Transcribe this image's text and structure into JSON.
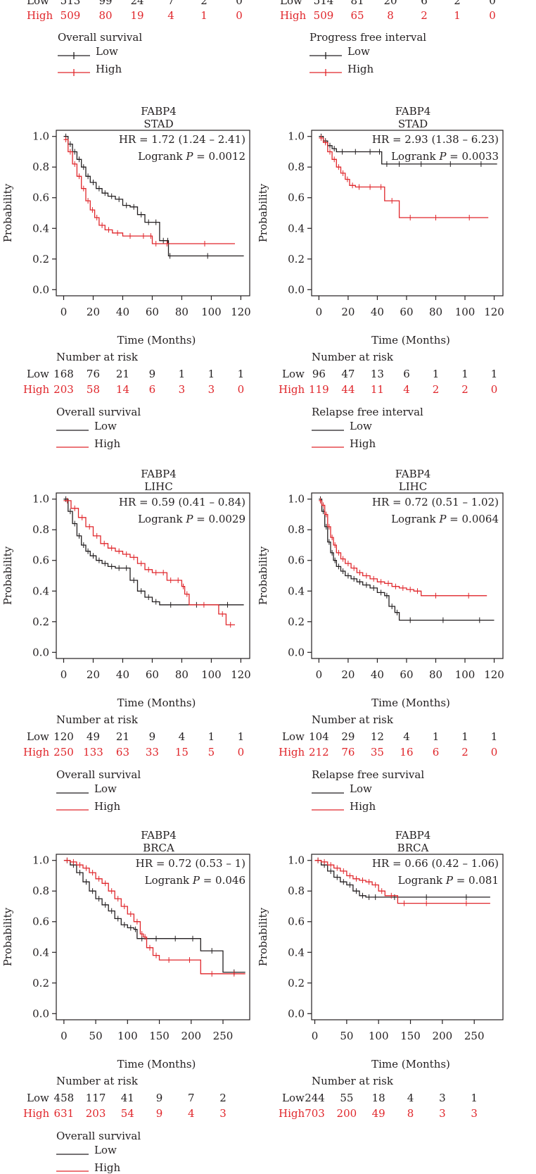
{
  "colors": {
    "low": "#231f20",
    "high": "#e0262b",
    "axis": "#231f20"
  },
  "common": {
    "gene": "FABP4",
    "ylabel": "Probability",
    "xlabel": "Time (Months)",
    "risk_title": "Number at risk",
    "low_label": "Low",
    "high_label": "High",
    "logrank_prefix": "Logrank ",
    "p_symbol": "P",
    "eq": " = "
  },
  "top_strip": {
    "left": {
      "low": [
        "513",
        "99",
        "24",
        "7",
        "2",
        "0"
      ],
      "high": [
        "509",
        "80",
        "19",
        "4",
        "1",
        "0"
      ],
      "legend_title": "Overall survival"
    },
    "right": {
      "low": [
        "514",
        "81",
        "20",
        "6",
        "2",
        "0"
      ],
      "high": [
        "509",
        "65",
        "8",
        "2",
        "1",
        "0"
      ],
      "legend_title": "Progress free interval"
    }
  },
  "chart_data": [
    {
      "type": "line",
      "id": "stad-os",
      "title": "FABP4",
      "subtitle": "STAD",
      "hr_text": "HR = 1.72 (1.24 – 2.41)",
      "p_value": "0.0012",
      "xlabel": "Time (Months)",
      "ylabel": "Probability",
      "x_ticks": [
        0,
        20,
        40,
        60,
        80,
        100,
        120
      ],
      "y_ticks": [
        0.0,
        0.2,
        0.4,
        0.6,
        0.8,
        1.0
      ],
      "xlim": [
        -5,
        126
      ],
      "ylim": [
        -0.04,
        1.04
      ],
      "risk_low": [
        "168",
        "76",
        "21",
        "9",
        "1",
        "1",
        "1"
      ],
      "risk_high": [
        "203",
        "58",
        "14",
        "6",
        "3",
        "3",
        "0"
      ],
      "legend_title": "Overall survival",
      "series": [
        {
          "name": "Low",
          "x": [
            0,
            3,
            6,
            9,
            12,
            15,
            18,
            22,
            26,
            30,
            35,
            40,
            45,
            50,
            55,
            60,
            65,
            70,
            71,
            73,
            122
          ],
          "y": [
            1.0,
            0.95,
            0.9,
            0.85,
            0.8,
            0.74,
            0.7,
            0.66,
            0.63,
            0.61,
            0.59,
            0.55,
            0.54,
            0.49,
            0.44,
            0.44,
            0.32,
            0.32,
            0.22,
            0.22,
            0.22
          ]
        },
        {
          "name": "High",
          "x": [
            0,
            3,
            6,
            9,
            12,
            15,
            18,
            21,
            24,
            28,
            33,
            40,
            50,
            58,
            60,
            65,
            75,
            116
          ],
          "y": [
            0.98,
            0.9,
            0.82,
            0.74,
            0.66,
            0.58,
            0.52,
            0.47,
            0.42,
            0.39,
            0.37,
            0.35,
            0.35,
            0.35,
            0.3,
            0.3,
            0.3,
            0.3
          ]
        }
      ]
    },
    {
      "type": "line",
      "id": "stad-rfi",
      "title": "FABP4",
      "subtitle": "STAD",
      "hr_text": "HR = 2.93 (1.38 – 6.23)",
      "p_value": "0.0033",
      "xlabel": "Time (Months)",
      "ylabel": "Probability",
      "x_ticks": [
        0,
        20,
        40,
        60,
        80,
        100,
        120
      ],
      "y_ticks": [
        0.0,
        0.2,
        0.4,
        0.6,
        0.8,
        1.0
      ],
      "xlim": [
        -5,
        126
      ],
      "ylim": [
        -0.04,
        1.04
      ],
      "risk_low": [
        "96",
        "47",
        "13",
        "6",
        "1",
        "1",
        "1"
      ],
      "risk_high": [
        "119",
        "44",
        "11",
        "4",
        "2",
        "2",
        "0"
      ],
      "legend_title": "Relapse free interval",
      "series": [
        {
          "name": "Low",
          "x": [
            0,
            3,
            6,
            9,
            12,
            20,
            30,
            40,
            43,
            50,
            60,
            80,
            100,
            122
          ],
          "y": [
            1.0,
            0.97,
            0.94,
            0.92,
            0.9,
            0.9,
            0.9,
            0.9,
            0.82,
            0.82,
            0.82,
            0.82,
            0.82,
            0.82
          ]
        },
        {
          "name": "High",
          "x": [
            0,
            3,
            6,
            9,
            12,
            15,
            18,
            21,
            25,
            30,
            40,
            45,
            55,
            70,
            90,
            116
          ],
          "y": [
            0.99,
            0.96,
            0.9,
            0.85,
            0.8,
            0.76,
            0.72,
            0.68,
            0.67,
            0.67,
            0.67,
            0.58,
            0.47,
            0.47,
            0.47,
            0.47
          ]
        }
      ]
    },
    {
      "type": "line",
      "id": "lihc-os",
      "title": "FABP4",
      "subtitle": "LIHC",
      "hr_text": "HR = 0.59 (0.41 – 0.84)",
      "p_value": "0.0029",
      "xlabel": "Time (Months)",
      "ylabel": "Probability",
      "x_ticks": [
        0,
        20,
        40,
        60,
        80,
        100,
        120
      ],
      "y_ticks": [
        0.0,
        0.2,
        0.4,
        0.6,
        0.8,
        1.0
      ],
      "xlim": [
        -5,
        126
      ],
      "ylim": [
        -0.04,
        1.04
      ],
      "risk_low": [
        "120",
        "49",
        "21",
        "9",
        "4",
        "1",
        "1"
      ],
      "risk_high": [
        "250",
        "133",
        "63",
        "33",
        "15",
        "5",
        "0"
      ],
      "legend_title": "Overall survival",
      "series": [
        {
          "name": "Low",
          "x": [
            0,
            3,
            6,
            9,
            12,
            15,
            18,
            22,
            26,
            30,
            35,
            40,
            45,
            50,
            55,
            60,
            65,
            80,
            100,
            122
          ],
          "y": [
            1.0,
            0.92,
            0.84,
            0.76,
            0.7,
            0.66,
            0.63,
            0.6,
            0.58,
            0.56,
            0.55,
            0.55,
            0.47,
            0.4,
            0.36,
            0.33,
            0.31,
            0.31,
            0.31,
            0.31
          ]
        },
        {
          "name": "High",
          "x": [
            0,
            5,
            10,
            15,
            20,
            25,
            30,
            35,
            40,
            45,
            50,
            55,
            60,
            65,
            70,
            75,
            80,
            82,
            85,
            105,
            110,
            116
          ],
          "y": [
            0.99,
            0.94,
            0.88,
            0.82,
            0.76,
            0.71,
            0.68,
            0.66,
            0.64,
            0.62,
            0.58,
            0.54,
            0.52,
            0.52,
            0.47,
            0.47,
            0.43,
            0.38,
            0.31,
            0.25,
            0.18,
            0.18
          ]
        }
      ]
    },
    {
      "type": "line",
      "id": "lihc-rfs",
      "title": "FABP4",
      "subtitle": "LIHC",
      "hr_text": "HR = 0.72 (0.51 – 1.02)",
      "p_value": "0.0064",
      "xlabel": "Time (Months)",
      "ylabel": "Probability",
      "x_ticks": [
        0,
        20,
        40,
        60,
        80,
        100,
        120
      ],
      "y_ticks": [
        0.0,
        0.2,
        0.4,
        0.6,
        0.8,
        1.0
      ],
      "xlim": [
        -5,
        126
      ],
      "ylim": [
        -0.04,
        1.04
      ],
      "risk_low": [
        "104",
        "29",
        "12",
        "4",
        "1",
        "1",
        "1"
      ],
      "risk_high": [
        "212",
        "76",
        "35",
        "16",
        "6",
        "2",
        "0"
      ],
      "legend_title": "Relapse free survival",
      "series": [
        {
          "name": "Low",
          "x": [
            0,
            2,
            4,
            6,
            8,
            10,
            12,
            15,
            18,
            22,
            26,
            30,
            35,
            40,
            45,
            48,
            52,
            55,
            70,
            100,
            120
          ],
          "y": [
            1.0,
            0.92,
            0.82,
            0.72,
            0.65,
            0.6,
            0.56,
            0.53,
            0.5,
            0.48,
            0.46,
            0.44,
            0.42,
            0.39,
            0.37,
            0.3,
            0.26,
            0.21,
            0.21,
            0.21,
            0.21
          ]
        },
        {
          "name": "High",
          "x": [
            0,
            2,
            4,
            6,
            8,
            10,
            12,
            15,
            18,
            22,
            26,
            30,
            35,
            40,
            45,
            50,
            55,
            60,
            65,
            70,
            90,
            115
          ],
          "y": [
            0.99,
            0.96,
            0.9,
            0.82,
            0.75,
            0.7,
            0.65,
            0.61,
            0.58,
            0.55,
            0.52,
            0.5,
            0.48,
            0.46,
            0.45,
            0.43,
            0.42,
            0.41,
            0.4,
            0.37,
            0.37,
            0.37
          ]
        }
      ]
    },
    {
      "type": "line",
      "id": "brca-os",
      "title": "FABP4",
      "subtitle": "BRCA",
      "hr_text": "HR = 0.72 (0.53 – 1)",
      "p_value": "0.046",
      "xlabel": "Time (Months)",
      "ylabel": "Probability",
      "x_ticks": [
        0,
        50,
        100,
        150,
        200,
        250
      ],
      "y_ticks": [
        0.0,
        0.2,
        0.4,
        0.6,
        0.8,
        1.0
      ],
      "xlim": [
        -12,
        292
      ],
      "ylim": [
        -0.04,
        1.04
      ],
      "risk_low": [
        "458",
        "117",
        "41",
        "9",
        "7",
        "2"
      ],
      "risk_high": [
        "631",
        "203",
        "54",
        "9",
        "4",
        "3"
      ],
      "legend_title": "Overall survival",
      "series": [
        {
          "name": "Low",
          "x": [
            0,
            10,
            20,
            30,
            40,
            50,
            60,
            70,
            80,
            90,
            100,
            110,
            115,
            130,
            160,
            190,
            215,
            250,
            285
          ],
          "y": [
            1.0,
            0.97,
            0.92,
            0.86,
            0.8,
            0.75,
            0.71,
            0.67,
            0.62,
            0.58,
            0.56,
            0.55,
            0.49,
            0.49,
            0.49,
            0.49,
            0.41,
            0.27,
            0.27
          ]
        },
        {
          "name": "High",
          "x": [
            0,
            10,
            20,
            30,
            40,
            50,
            60,
            70,
            80,
            90,
            100,
            110,
            120,
            125,
            130,
            140,
            150,
            180,
            215,
            250,
            285
          ],
          "y": [
            1.0,
            0.99,
            0.97,
            0.95,
            0.92,
            0.88,
            0.85,
            0.8,
            0.75,
            0.7,
            0.65,
            0.6,
            0.52,
            0.5,
            0.43,
            0.38,
            0.35,
            0.35,
            0.26,
            0.26,
            0.26
          ]
        }
      ]
    },
    {
      "type": "line",
      "id": "brca-rfs",
      "title": "FABP4",
      "subtitle": "BRCA",
      "hr_text": "HR = 0.66 (0.42 – 1.06)",
      "p_value": "0.081",
      "xlabel": "Time (Months)",
      "ylabel": "Probability",
      "x_ticks": [
        0,
        50,
        100,
        150,
        200,
        250
      ],
      "y_ticks": [
        0.0,
        0.2,
        0.4,
        0.6,
        0.8,
        1.0
      ],
      "xlim": [
        -5,
        295
      ],
      "ylim": [
        -0.04,
        1.04
      ],
      "risk_low": [
        "244",
        "55",
        "18",
        "4",
        "3",
        "1"
      ],
      "risk_high": [
        "703",
        "200",
        "49",
        "8",
        "3",
        "3"
      ],
      "legend_title": "",
      "series": [
        {
          "name": "Low",
          "x": [
            0,
            10,
            20,
            30,
            40,
            50,
            60,
            70,
            80,
            90,
            100,
            150,
            200,
            275
          ],
          "y": [
            1.0,
            0.97,
            0.93,
            0.89,
            0.86,
            0.84,
            0.8,
            0.77,
            0.76,
            0.76,
            0.76,
            0.76,
            0.76,
            0.76
          ]
        },
        {
          "name": "High",
          "x": [
            0,
            10,
            20,
            30,
            40,
            50,
            60,
            70,
            80,
            90,
            100,
            110,
            130,
            150,
            200,
            275
          ],
          "y": [
            1.0,
            0.99,
            0.97,
            0.95,
            0.93,
            0.9,
            0.88,
            0.87,
            0.86,
            0.84,
            0.8,
            0.77,
            0.72,
            0.72,
            0.72,
            0.72
          ]
        }
      ]
    }
  ]
}
